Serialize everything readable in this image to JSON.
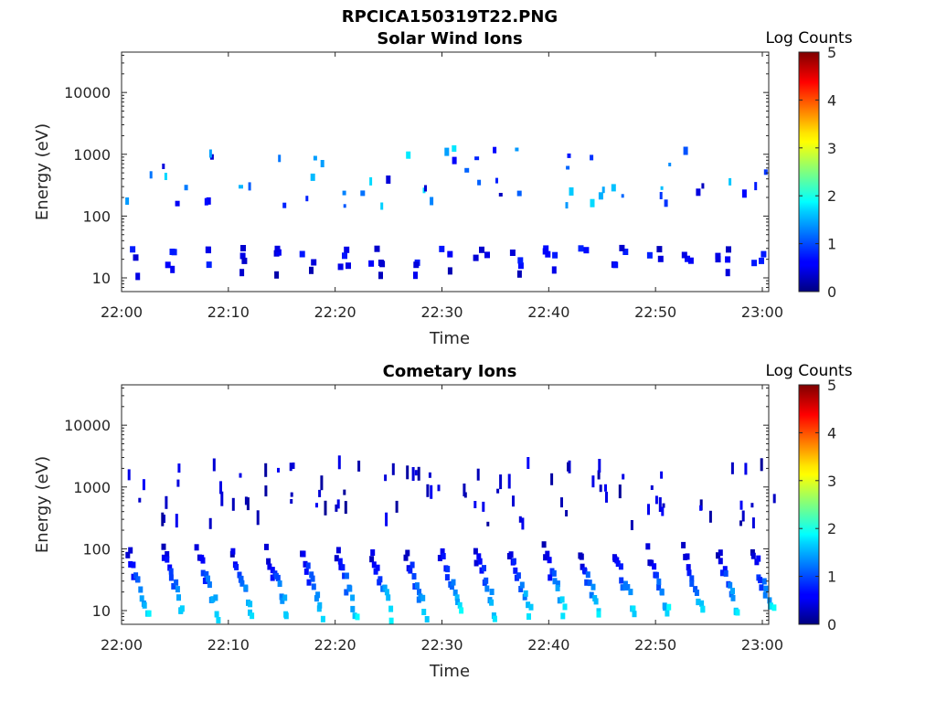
{
  "figure": {
    "title": "RPCICA150319T22.PNG"
  },
  "chart_data": [
    {
      "type": "heatmap",
      "title": "Solar Wind Ions",
      "xlabel": "Time",
      "ylabel": "Energy (eV)",
      "x_ticks": [
        "22:00",
        "22:10",
        "22:20",
        "22:30",
        "22:40",
        "22:50",
        "23:00"
      ],
      "xlim_minutes": [
        0,
        60.6
      ],
      "y_scale": "log",
      "ylim": [
        6,
        45000
      ],
      "y_ticks": [
        10,
        100,
        1000,
        10000
      ],
      "y_tick_labels": [
        "10",
        "100",
        "1000",
        "10000"
      ],
      "colorbar": {
        "label": "Log Counts",
        "range": [
          0,
          5
        ],
        "ticks": [
          "0",
          "1",
          "2",
          "3",
          "4",
          "5"
        ],
        "colormap": "jet"
      },
      "grid": false,
      "description_note": "Sweeps every ~3 min; low band 10-30 eV at log counts ~0.3-1, sparse hits 200-1300 eV up to ~2"
    },
    {
      "type": "heatmap",
      "title": "Cometary Ions",
      "xlabel": "Time",
      "ylabel": "Energy (eV)",
      "x_ticks": [
        "22:00",
        "22:10",
        "22:20",
        "22:30",
        "22:40",
        "22:50",
        "23:00"
      ],
      "xlim_minutes": [
        0,
        60.6
      ],
      "y_scale": "log",
      "ylim": [
        6,
        45000
      ],
      "y_ticks": [
        10,
        100,
        1000,
        10000
      ],
      "y_tick_labels": [
        "10",
        "100",
        "1000",
        "10000"
      ],
      "colorbar": {
        "label": "Log Counts",
        "range": [
          0,
          5
        ],
        "ticks": [
          "0",
          "1",
          "2",
          "3",
          "4",
          "5"
        ],
        "colormap": "jet"
      },
      "grid": false
    }
  ]
}
